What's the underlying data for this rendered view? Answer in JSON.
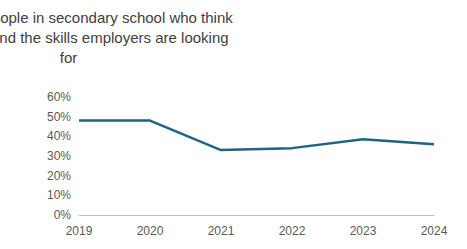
{
  "chart_data": {
    "type": "line",
    "title": "% of young people in secondary school who think they understand the skills employers are looking for",
    "categories": [
      "2019",
      "2020",
      "2021",
      "2022",
      "2023",
      "2024"
    ],
    "values": [
      48,
      48,
      33,
      34,
      38.5,
      36
    ],
    "color": "#1f6482",
    "ylim": [
      0,
      60
    ],
    "yticks": [
      {
        "value": 0,
        "label": "0%"
      },
      {
        "value": 10,
        "label": "10%"
      },
      {
        "value": 20,
        "label": "20%"
      },
      {
        "value": 30,
        "label": "30%"
      },
      {
        "value": 40,
        "label": "40%"
      },
      {
        "value": 50,
        "label": "50%"
      },
      {
        "value": 60,
        "label": "60%"
      }
    ],
    "grid": false
  }
}
